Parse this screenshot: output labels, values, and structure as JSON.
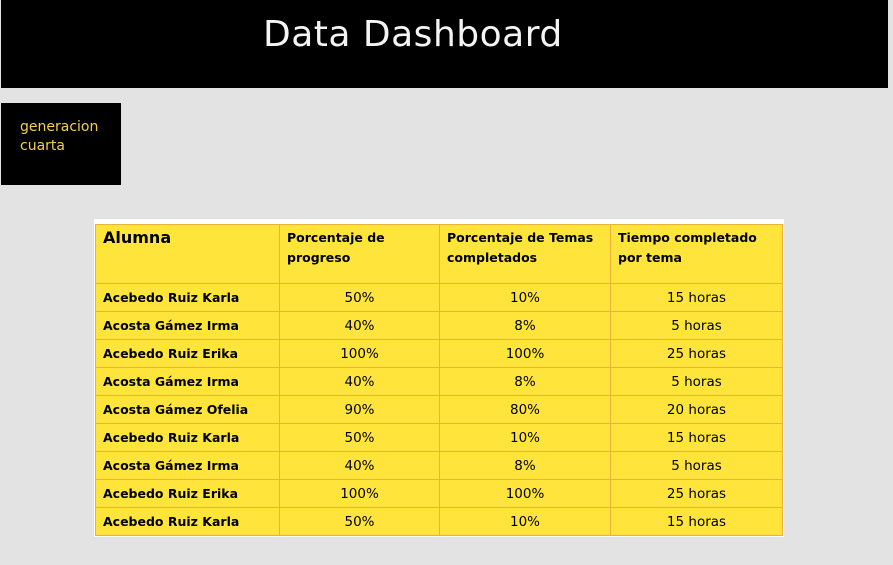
{
  "header": {
    "title": "Data Dashboard"
  },
  "sidebar_box": {
    "text": "generacion cuarta"
  },
  "table": {
    "columns": [
      "Alumna",
      "Porcentaje de progreso",
      "Porcentaje de Temas completados",
      "Tiempo completado por tema"
    ],
    "rows": [
      [
        "Acebedo Ruiz Karla",
        "50%",
        "10%",
        "15 horas"
      ],
      [
        "Acosta Gámez Irma",
        "40%",
        "8%",
        "5 horas"
      ],
      [
        "Acebedo Ruiz Erika",
        "100%",
        "100%",
        "25 horas"
      ],
      [
        "Acosta Gámez Irma",
        "40%",
        "8%",
        "5 horas"
      ],
      [
        "Acosta Gámez Ofelia",
        "90%",
        "80%",
        "20 horas"
      ],
      [
        "Acebedo Ruiz Karla",
        "50%",
        "10%",
        "15 horas"
      ],
      [
        "Acosta Gámez Irma",
        "40%",
        "8%",
        "5 horas"
      ],
      [
        "Acebedo Ruiz Erika",
        "100%",
        "100%",
        "25 horas"
      ],
      [
        "Acebedo Ruiz Karla",
        "50%",
        "10%",
        "15 horas"
      ]
    ]
  },
  "colors": {
    "background": "#e3e3e3",
    "header_bg": "#000000",
    "header_text": "#f4f4f4",
    "sidebar_text": "#f2d247",
    "table_fill": "#ffe53b",
    "table_border": "#ecb33a"
  }
}
